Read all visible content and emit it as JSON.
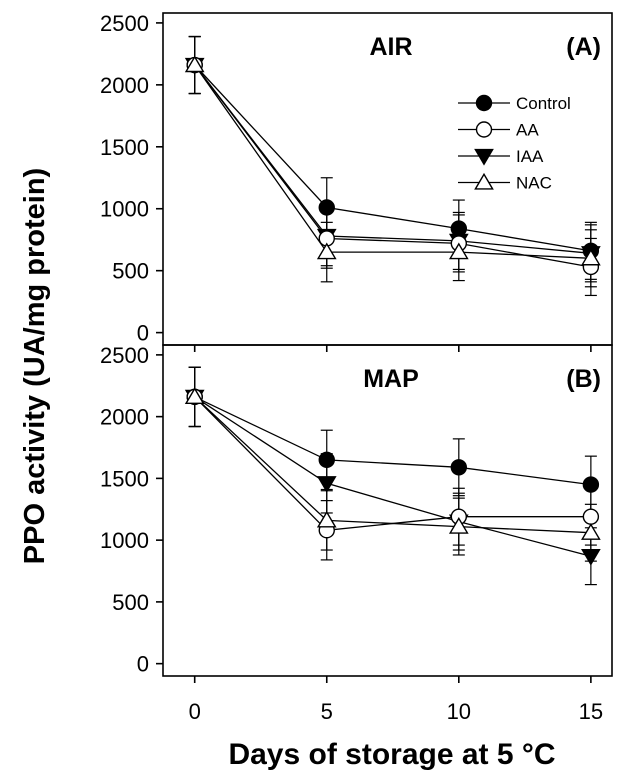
{
  "figure": {
    "ylabel": "PPO activity (UA/mg protein)",
    "xlabel": "Days of storage at 5 °C"
  },
  "legend": {
    "placement": "top-right of panel A",
    "entries": [
      {
        "label": "Control",
        "marker": "filled-circle"
      },
      {
        "label": "AA",
        "marker": "open-circle"
      },
      {
        "label": "IAA",
        "marker": "filled-triangle-down"
      },
      {
        "label": "NAC",
        "marker": "open-triangle-up"
      }
    ]
  },
  "chart_data": [
    {
      "type": "line",
      "title": "AIR",
      "panel_label": "(A)",
      "x": [
        0,
        5,
        10,
        15
      ],
      "xticks": [
        "0",
        "5",
        "10",
        "15"
      ],
      "yticks": [
        "0",
        "500",
        "1000",
        "1500",
        "2000",
        "2500"
      ],
      "xlim": [
        -1.2,
        15.8
      ],
      "ylim": [
        -100,
        2580
      ],
      "grid": false,
      "series": [
        {
          "name": "Control",
          "values": [
            2160,
            1010,
            840,
            660
          ],
          "errors": [
            230,
            240,
            230,
            230
          ]
        },
        {
          "name": "AA",
          "values": [
            2160,
            760,
            720,
            530
          ],
          "errors": [
            230,
            240,
            230,
            230
          ]
        },
        {
          "name": "IAA",
          "values": [
            2160,
            780,
            740,
            640
          ],
          "errors": [
            230,
            240,
            230,
            230
          ]
        },
        {
          "name": "NAC",
          "values": [
            2160,
            650,
            650,
            600
          ],
          "errors": [
            230,
            240,
            230,
            230
          ]
        }
      ]
    },
    {
      "type": "line",
      "title": "MAP",
      "panel_label": "(B)",
      "x": [
        0,
        5,
        10,
        15
      ],
      "xticks": [
        "0",
        "5",
        "10",
        "15"
      ],
      "yticks": [
        "0",
        "500",
        "1000",
        "1500",
        "2000",
        "2500"
      ],
      "xlim": [
        -1.2,
        15.8
      ],
      "ylim": [
        -100,
        2580
      ],
      "grid": false,
      "series": [
        {
          "name": "Control",
          "values": [
            2160,
            1650,
            1590,
            1450
          ],
          "errors": [
            240,
            240,
            230,
            230
          ]
        },
        {
          "name": "AA",
          "values": [
            2160,
            1080,
            1190,
            1190
          ],
          "errors": [
            240,
            240,
            230,
            230
          ]
        },
        {
          "name": "IAA",
          "values": [
            2160,
            1460,
            1150,
            870
          ],
          "errors": [
            240,
            240,
            230,
            230
          ]
        },
        {
          "name": "NAC",
          "values": [
            2160,
            1160,
            1110,
            1060
          ],
          "errors": [
            240,
            240,
            230,
            230
          ]
        }
      ]
    }
  ]
}
